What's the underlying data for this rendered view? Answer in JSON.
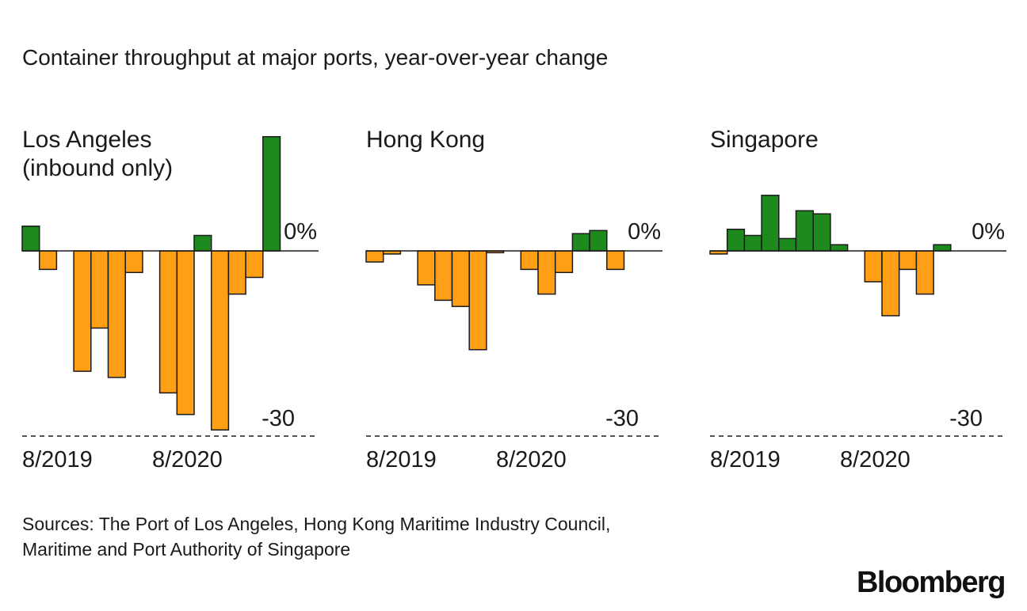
{
  "title": "Container throughput at major ports, year-over-year change",
  "source": [
    "Sources: The Port of Los Angeles, Hong Kong Maritime Industry Council,",
    "Maritime and Port Authority of Singapore"
  ],
  "brand": "Bloomberg",
  "colors": {
    "positive": "#1e8a1e",
    "negative": "#ff9f15",
    "text": "#1a1a1a"
  },
  "chart_data": [
    {
      "type": "bar",
      "title": [
        "Los Angeles",
        "(inbound only)"
      ],
      "x": [
        "2019-05",
        "2019-06",
        "2019-07",
        "2019-08",
        "2019-09",
        "2019-10",
        "2019-11",
        "2019-12",
        "2020-01",
        "2020-02",
        "2020-03",
        "2020-04",
        "2020-05",
        "2020-06",
        "2020-07",
        "2020-08",
        "2020-09",
        "2020-10",
        "2020-11",
        "2020-12"
      ],
      "values": [
        4,
        -3,
        null,
        -19.5,
        -12.5,
        -20.5,
        -3.5,
        null,
        -23,
        -26.5,
        2.5,
        -29,
        -7,
        -4.3,
        18.5,
        null,
        null,
        null,
        null,
        null
      ],
      "ylim": [
        -30,
        20
      ],
      "yticks": [
        "0%",
        "-30"
      ],
      "xticks": [
        "8/2019",
        "8/2020"
      ],
      "grid": false
    },
    {
      "type": "bar",
      "title": [
        "Hong Kong"
      ],
      "x": [
        "2019-05",
        "2019-06",
        "2019-07",
        "2019-08",
        "2019-09",
        "2019-10",
        "2019-11",
        "2019-12",
        "2020-01",
        "2020-02",
        "2020-03",
        "2020-04",
        "2020-05",
        "2020-06",
        "2020-07",
        "2020-08",
        "2020-09",
        "2020-10",
        "2020-11",
        "2020-12"
      ],
      "values": [
        -1.8,
        -0.5,
        null,
        -5.5,
        -8,
        -9,
        -16,
        -0.3,
        null,
        -3,
        -7,
        -3.5,
        2.8,
        3.3,
        -3,
        null,
        null,
        null,
        null,
        null
      ],
      "ylim": [
        -30,
        20
      ],
      "yticks": [
        "0%",
        "-30"
      ],
      "xticks": [
        "8/2019",
        "8/2020"
      ],
      "grid": false
    },
    {
      "type": "bar",
      "title": [
        "Singapore"
      ],
      "x": [
        "2019-05",
        "2019-06",
        "2019-07",
        "2019-08",
        "2019-09",
        "2019-10",
        "2019-11",
        "2019-12",
        "2020-01",
        "2020-02",
        "2020-03",
        "2020-04",
        "2020-05",
        "2020-06",
        "2020-07",
        "2020-08",
        "2020-09",
        "2020-10",
        "2020-11",
        "2020-12"
      ],
      "values": [
        -0.5,
        3.5,
        2.5,
        9,
        2,
        6.5,
        6,
        1,
        null,
        -5,
        -10.5,
        -3,
        -7,
        1,
        null,
        null,
        null,
        null,
        null,
        null
      ],
      "ylim": [
        -30,
        20
      ],
      "yticks": [
        "0%",
        "-30"
      ],
      "xticks": [
        "8/2019",
        "8/2020"
      ],
      "grid": false
    }
  ]
}
